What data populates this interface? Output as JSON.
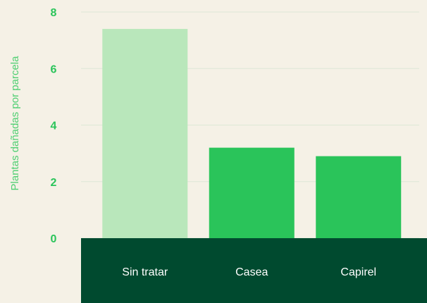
{
  "chart_data": {
    "type": "bar",
    "y_label": "Plantas dañadas por parcela",
    "categories": [
      "Sin tratar",
      "Casea",
      "Capirel"
    ],
    "values": [
      7.4,
      3.2,
      2.9
    ],
    "colors": [
      "#b9e7bb",
      "#2ac45a",
      "#2ac45a"
    ],
    "ylim": [
      0,
      8
    ],
    "yticks": [
      0,
      2,
      4,
      6,
      8
    ],
    "grid": true
  }
}
